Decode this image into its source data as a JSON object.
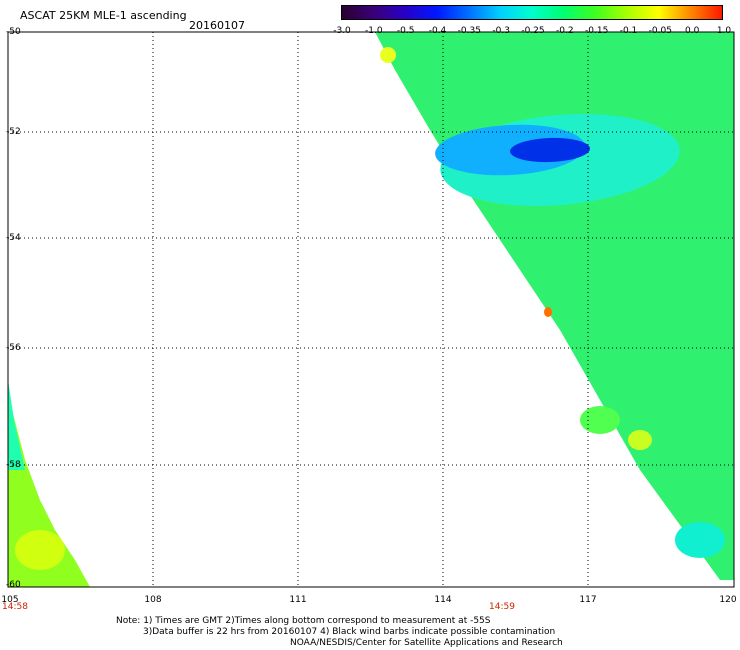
{
  "header": {
    "title": "ASCAT 25KM MLE-1 ascending",
    "date": "20160107"
  },
  "colorbar": {
    "labels": [
      "-3.0",
      "-1.0",
      "-0.5",
      "-0.4",
      "-0.35",
      "-0.3",
      "-0.25",
      "-0.2",
      "-0.15",
      "-0.1",
      "-0.05",
      "0.0",
      "1.0"
    ],
    "colors": [
      "#2a0030",
      "#3a0078",
      "#2800c8",
      "#0018ff",
      "#0070ff",
      "#00d0ff",
      "#00ffcc",
      "#00ff70",
      "#40ff20",
      "#a8ff00",
      "#ffff00",
      "#ff8800",
      "#ff1800"
    ]
  },
  "map": {
    "lat_labels": [
      "-50",
      "-52",
      "-54",
      "-56",
      "-58",
      "-60"
    ],
    "lon_labels": [
      "105",
      "108",
      "111",
      "114",
      "117",
      "120"
    ],
    "time_labels": [
      "14:58",
      "14:59"
    ]
  },
  "notes": [
    "Note: 1) Times are GMT 2)Times along bottom correspond to measurement at -55S",
    "3)Data buffer is 22 hrs from 20160107 4) Black wind barbs indicate possible contamination",
    "NOAA/NESDIS/Center for Satellite Applications and Research"
  ]
}
